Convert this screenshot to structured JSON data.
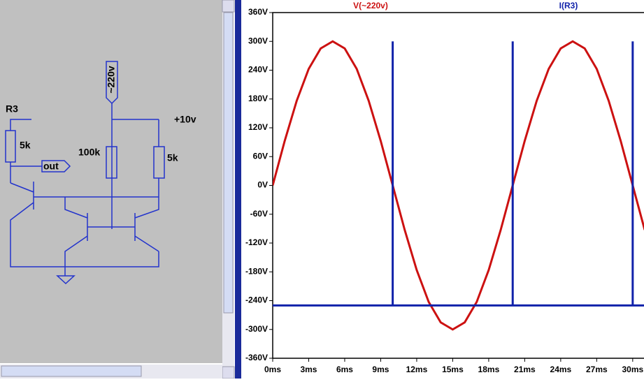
{
  "schematic": {
    "r3_name": "R3",
    "r3_value": "5k",
    "out_label": "out",
    "source_label": "~220v",
    "rail_label": "+10v",
    "r_mid_value": "100k",
    "r_right_value": "5k"
  },
  "chart_data": {
    "type": "line",
    "series": [
      {
        "name": "V(~220v)",
        "color": "#cc1111",
        "x": [
          0,
          1,
          2,
          3,
          4,
          5,
          6,
          7,
          8,
          9,
          10,
          11,
          12,
          13,
          14,
          15,
          16,
          17,
          18,
          19,
          20,
          21,
          22,
          23,
          24,
          25,
          26,
          27,
          28,
          29,
          30,
          31
        ],
        "values": [
          0,
          92.7,
          176.3,
          242.7,
          285.3,
          300,
          285.3,
          242.7,
          176.3,
          92.7,
          0,
          -92.7,
          -176.3,
          -242.7,
          -285.3,
          -300,
          -285.3,
          -242.7,
          -176.3,
          -92.7,
          0,
          92.7,
          176.3,
          242.7,
          285.3,
          300,
          285.3,
          242.7,
          176.3,
          92.7,
          0,
          -92.7
        ]
      },
      {
        "name": "I(R3)",
        "color": "#1122aa",
        "x": [
          0,
          10,
          10,
          10,
          20,
          20,
          20,
          30,
          30,
          30,
          31
        ],
        "values": [
          -250,
          -250,
          300,
          -250,
          -250,
          300,
          -250,
          -250,
          300,
          -250,
          -250
        ]
      }
    ],
    "xlim": [
      0,
      31
    ],
    "ylim": [
      -360,
      360
    ],
    "xticks": [
      {
        "value": 0,
        "label": "0ms"
      },
      {
        "value": 3,
        "label": "3ms"
      },
      {
        "value": 6,
        "label": "6ms"
      },
      {
        "value": 9,
        "label": "9ms"
      },
      {
        "value": 12,
        "label": "12ms"
      },
      {
        "value": 15,
        "label": "15ms"
      },
      {
        "value": 18,
        "label": "18ms"
      },
      {
        "value": 21,
        "label": "21ms"
      },
      {
        "value": 24,
        "label": "24ms"
      },
      {
        "value": 27,
        "label": "27ms"
      },
      {
        "value": 30,
        "label": "30ms"
      }
    ],
    "yticks": [
      {
        "value": -360,
        "label": "-360V"
      },
      {
        "value": -300,
        "label": "-300V"
      },
      {
        "value": -240,
        "label": "-240V"
      },
      {
        "value": -180,
        "label": "-180V"
      },
      {
        "value": -120,
        "label": "-120V"
      },
      {
        "value": -60,
        "label": "-60V"
      },
      {
        "value": 0,
        "label": "0V"
      },
      {
        "value": 60,
        "label": "60V"
      },
      {
        "value": 120,
        "label": "120V"
      },
      {
        "value": 180,
        "label": "180V"
      },
      {
        "value": 240,
        "label": "240V"
      },
      {
        "value": 300,
        "label": "300V"
      },
      {
        "value": 360,
        "label": "360V"
      }
    ],
    "grid": false
  }
}
